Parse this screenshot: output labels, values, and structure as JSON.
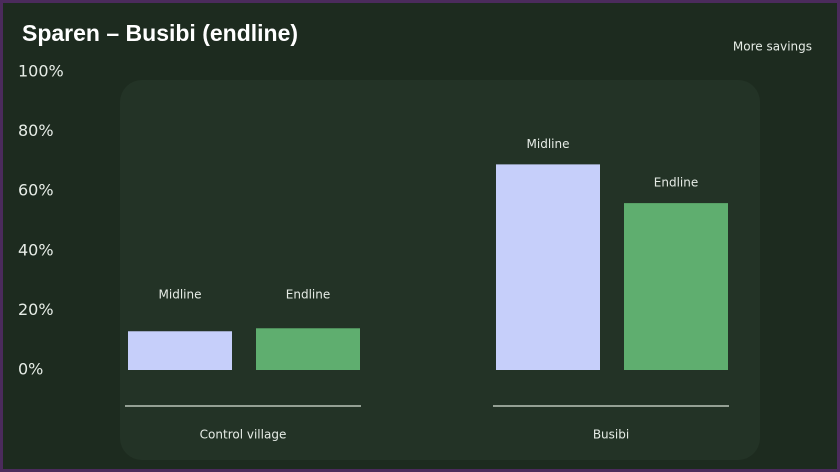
{
  "chart_data": {
    "type": "bar",
    "title": "Sparen – Busibi (endline)",
    "annotation": "More savings",
    "categories": [
      "Control village",
      "Busibi"
    ],
    "series": [
      {
        "name": "Midline",
        "color": "#c6cffa",
        "values": [
          13,
          69
        ]
      },
      {
        "name": "Endline",
        "color": "#5fae6f",
        "values": [
          14,
          56
        ]
      }
    ],
    "ylim": [
      0,
      100
    ],
    "yticks": [
      {
        "value": 0,
        "label": "0%"
      },
      {
        "value": 20,
        "label": "20%"
      },
      {
        "value": 40,
        "label": "40%"
      },
      {
        "value": 60,
        "label": "60%"
      },
      {
        "value": 80,
        "label": "80%"
      },
      {
        "value": 100,
        "label": "100%"
      }
    ]
  }
}
